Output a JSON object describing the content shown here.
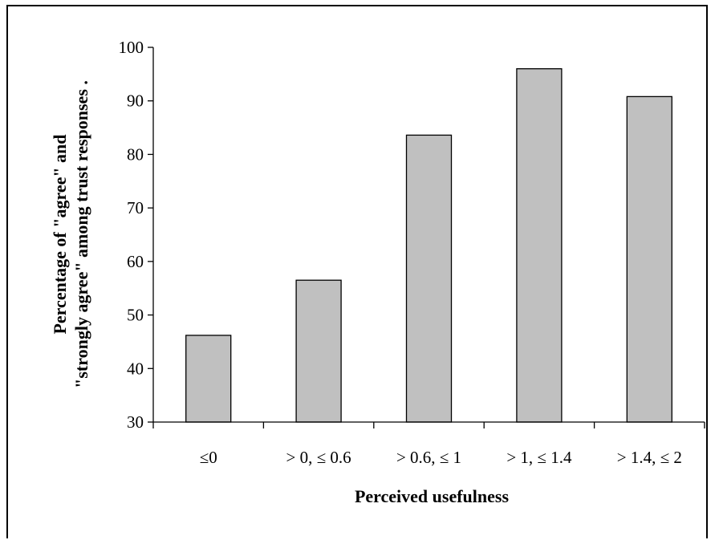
{
  "chart_data": {
    "type": "bar",
    "title": "",
    "xlabel": "Perceived usefulness",
    "ylabel_lines": [
      "Percentage of \"agree\" and",
      "\"strongly agree\" among trust responses ."
    ],
    "categories": [
      "≤0",
      "> 0, ≤ 0.6",
      "> 0.6, ≤ 1",
      "> 1, ≤ 1.4",
      "> 1.4, ≤ 2"
    ],
    "values": [
      46.2,
      56.5,
      83.6,
      96.0,
      90.8
    ],
    "ylim": [
      30,
      100
    ],
    "yticks": [
      30,
      40,
      50,
      60,
      70,
      80,
      90,
      100
    ],
    "bar_color": "#c0c0c0",
    "grid": false
  }
}
